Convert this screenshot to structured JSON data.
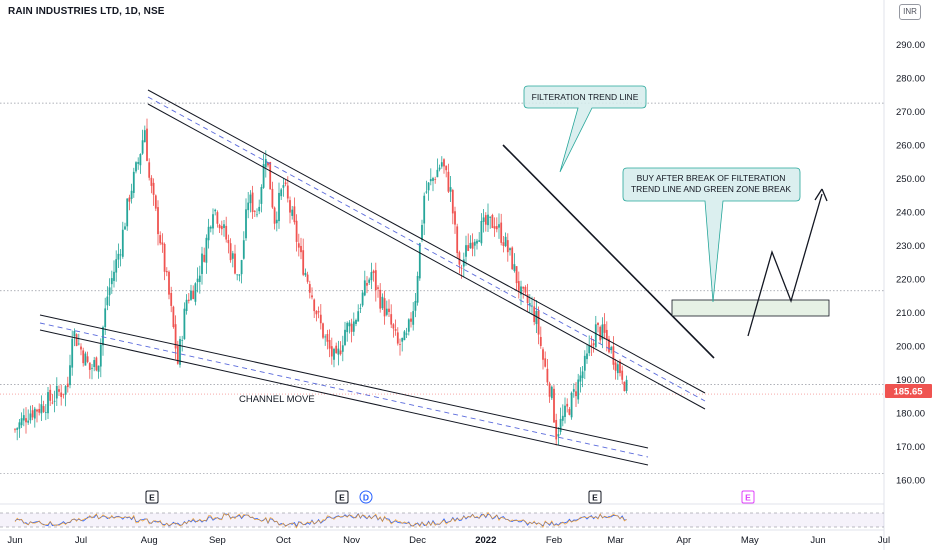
{
  "header": {
    "title": "RAIN INDUSTRIES LTD, 1D, NSE",
    "currency": "INR"
  },
  "chart_data": {
    "type": "candlestick",
    "symbol": "RAIN INDUSTRIES LTD",
    "interval": "1D",
    "exchange": "NSE",
    "currency": "INR",
    "last_price": "185.65",
    "last_price_color": "#ef5350",
    "up_color": "#26a69a",
    "down_color": "#ef5350",
    "ylim": [
      155,
      297
    ],
    "y_ticks": [
      "160.00",
      "170.00",
      "180.00",
      "190.00",
      "200.00",
      "210.00",
      "220.00",
      "230.00",
      "240.00",
      "250.00",
      "260.00",
      "270.00",
      "280.00",
      "290.00"
    ],
    "x_ticks": [
      "Jun",
      "Jul",
      "Aug",
      "Sep",
      "Oct",
      "Nov",
      "Dec",
      "2022",
      "Feb",
      "Mar",
      "Apr",
      "May",
      "Jun",
      "Jul"
    ],
    "x_tick_days": [
      0,
      30,
      61,
      92,
      122,
      153,
      183,
      214,
      245,
      273,
      304,
      334,
      365,
      395
    ],
    "price_anchors": [
      [
        0,
        175
      ],
      [
        6,
        180
      ],
      [
        12,
        182
      ],
      [
        18,
        185
      ],
      [
        24,
        188
      ],
      [
        26,
        205
      ],
      [
        30,
        199
      ],
      [
        34,
        193
      ],
      [
        38,
        196
      ],
      [
        42,
        215
      ],
      [
        48,
        230
      ],
      [
        52,
        245
      ],
      [
        56,
        255
      ],
      [
        59,
        265
      ],
      [
        61,
        250
      ],
      [
        66,
        232
      ],
      [
        70,
        215
      ],
      [
        74,
        195
      ],
      [
        78,
        214
      ],
      [
        82,
        218
      ],
      [
        86,
        228
      ],
      [
        90,
        242
      ],
      [
        94,
        236
      ],
      [
        98,
        228
      ],
      [
        102,
        220
      ],
      [
        106,
        244
      ],
      [
        110,
        240
      ],
      [
        114,
        258
      ],
      [
        118,
        238
      ],
      [
        122,
        248
      ],
      [
        126,
        238
      ],
      [
        130,
        226
      ],
      [
        134,
        218
      ],
      [
        138,
        208
      ],
      [
        142,
        200
      ],
      [
        146,
        195
      ],
      [
        150,
        205
      ],
      [
        154,
        207
      ],
      [
        158,
        215
      ],
      [
        162,
        222
      ],
      [
        166,
        214
      ],
      [
        170,
        208
      ],
      [
        174,
        200
      ],
      [
        178,
        202
      ],
      [
        182,
        215
      ],
      [
        186,
        245
      ],
      [
        190,
        250
      ],
      [
        194,
        255
      ],
      [
        198,
        246
      ],
      [
        202,
        222
      ],
      [
        206,
        230
      ],
      [
        210,
        234
      ],
      [
        214,
        236
      ],
      [
        218,
        237
      ],
      [
        222,
        232
      ],
      [
        226,
        225
      ],
      [
        230,
        215
      ],
      [
        234,
        212
      ],
      [
        237,
        208
      ],
      [
        240,
        196
      ],
      [
        244,
        185
      ],
      [
        246,
        174
      ],
      [
        248,
        177
      ],
      [
        252,
        182
      ],
      [
        256,
        189
      ],
      [
        260,
        196
      ],
      [
        264,
        205
      ],
      [
        268,
        203
      ],
      [
        272,
        197
      ],
      [
        274,
        194
      ],
      [
        276,
        192
      ],
      [
        278,
        187
      ]
    ],
    "annotations": {
      "channel_move": "CHANNEL MOVE",
      "filteration": "FILTERATION TREND LINE",
      "buy_line1": "BUY AFTER BREAK OF FILTERATION",
      "buy_line2": "TREND LINE AND GREEN ZONE BREAK"
    },
    "events": [
      "E",
      "E",
      "D",
      "E",
      "E"
    ],
    "oscillator": {
      "upper_level": 70,
      "lower_level": 30
    }
  }
}
